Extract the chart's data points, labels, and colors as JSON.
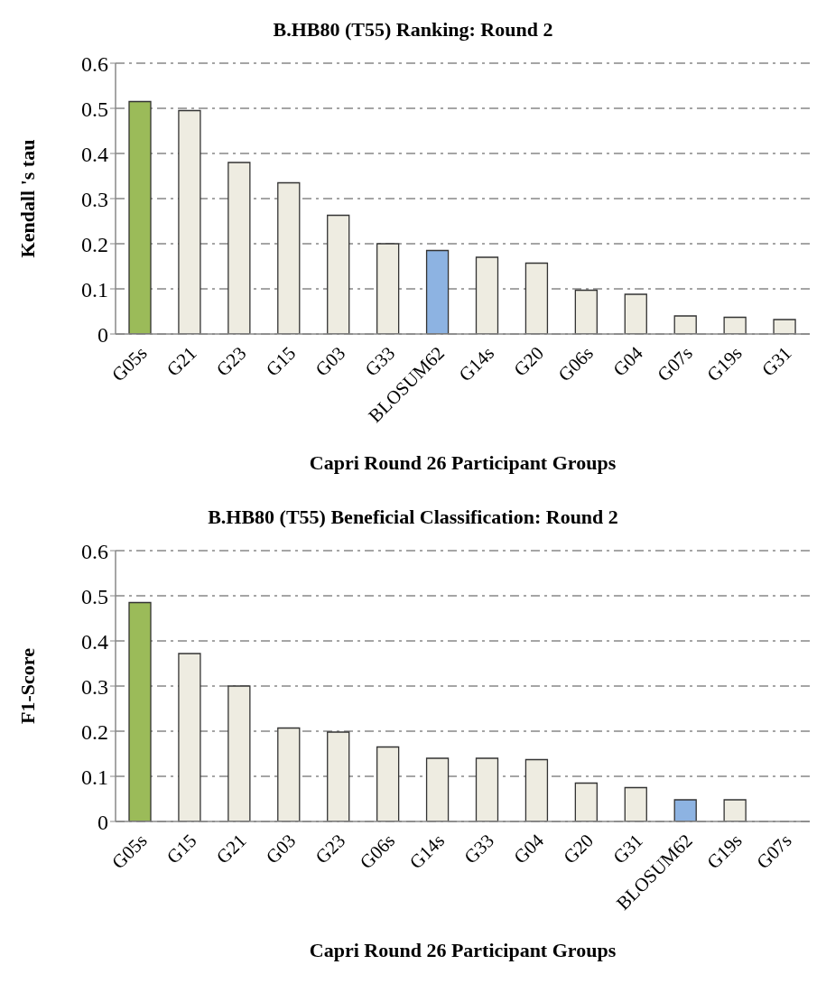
{
  "chart_data": [
    {
      "type": "bar",
      "title": "B.HB80 (T55) Ranking: Round 2",
      "xlabel": "Capri Round 26 Participant Groups",
      "ylabel": "Kendall 's tau",
      "categories": [
        "G05s",
        "G21",
        "G23",
        "G15",
        "G03",
        "G33",
        "BLOSUM62",
        "G14s",
        "G20",
        "G06s",
        "G04",
        "G07s",
        "G19s",
        "G31"
      ],
      "values": [
        0.515,
        0.495,
        0.38,
        0.335,
        0.263,
        0.2,
        0.185,
        0.17,
        0.157,
        0.097,
        0.088,
        0.04,
        0.037,
        0.032
      ],
      "colors": [
        "#9bbb59",
        "#eeece1",
        "#eeece1",
        "#eeece1",
        "#eeece1",
        "#eeece1",
        "#8db3e2",
        "#eeece1",
        "#eeece1",
        "#eeece1",
        "#eeece1",
        "#eeece1",
        "#eeece1",
        "#eeece1"
      ],
      "ylim": [
        0,
        0.6
      ],
      "yticks": [
        0,
        0.1,
        0.2,
        0.3,
        0.4,
        0.5,
        0.6
      ],
      "grid": "y",
      "legend": false
    },
    {
      "type": "bar",
      "title": "B.HB80 (T55) Beneficial Classification: Round 2",
      "xlabel": "Capri Round 26 Participant Groups",
      "ylabel": "F1-Score",
      "categories": [
        "G05s",
        "G15",
        "G21",
        "G03",
        "G23",
        "G06s",
        "G14s",
        "G33",
        "G04",
        "G20",
        "G31",
        "BLOSUM62",
        "G19s",
        "G07s"
      ],
      "values": [
        0.485,
        0.372,
        0.3,
        0.207,
        0.198,
        0.165,
        0.14,
        0.14,
        0.137,
        0.085,
        0.075,
        0.048,
        0.048,
        0
      ],
      "colors": [
        "#9bbb59",
        "#eeece1",
        "#eeece1",
        "#eeece1",
        "#eeece1",
        "#eeece1",
        "#eeece1",
        "#eeece1",
        "#eeece1",
        "#eeece1",
        "#eeece1",
        "#8db3e2",
        "#eeece1",
        "#eeece1"
      ],
      "ylim": [
        0,
        0.6
      ],
      "yticks": [
        0,
        0.1,
        0.2,
        0.3,
        0.4,
        0.5,
        0.6
      ],
      "grid": "y",
      "legend": false
    }
  ]
}
